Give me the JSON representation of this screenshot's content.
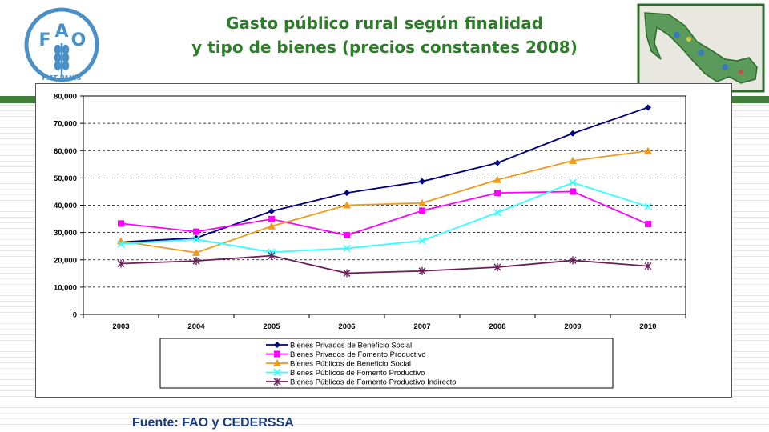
{
  "title_line1": "Gasto público rural según finalidad",
  "title_line2": "y tipo de bienes (precios constantes 2008)",
  "source": "Fuente: FAO y CEDERSSA",
  "logo": {
    "letters": [
      "F",
      "A",
      "O"
    ],
    "motto": "FIAT PANIS"
  },
  "colors": {
    "title": "#2e7d2a",
    "band": "#3f7f3a",
    "logo": "#4a90c8",
    "source": "#1a3a80"
  },
  "chart_data": {
    "type": "line",
    "categories": [
      "2003",
      "2004",
      "2005",
      "2006",
      "2007",
      "2008",
      "2009",
      "2010"
    ],
    "ylim": [
      0,
      80000
    ],
    "yticks": [
      0,
      10000,
      20000,
      30000,
      40000,
      50000,
      60000,
      70000,
      80000
    ],
    "ytick_labels": [
      "0",
      "10,000",
      "20,000",
      "30,000",
      "40,000",
      "50,000",
      "60,000",
      "70,000",
      "80,000"
    ],
    "grid": "horizontal dashed",
    "legend_position": "bottom",
    "series": [
      {
        "name": "Bienes Privados de Beneficio Social",
        "color": "#000080",
        "marker": "diamond",
        "values": [
          26500,
          28000,
          37800,
          44500,
          48700,
          55500,
          66300,
          75800
        ]
      },
      {
        "name": "Bienes Privados de Fomento Productivo",
        "color": "#ff00ff",
        "marker": "square",
        "values": [
          33300,
          30300,
          34900,
          29000,
          38000,
          44500,
          45000,
          33100
        ]
      },
      {
        "name": "Bienes Públicos de Beneficio Social",
        "color": "#f09a1a",
        "marker": "triangle",
        "values": [
          26800,
          22600,
          32300,
          40000,
          40800,
          49300,
          56300,
          59900
        ]
      },
      {
        "name": "Bienes Públicos de Fomento Productivo",
        "color": "#33ffff",
        "marker": "x",
        "values": [
          25800,
          27500,
          22800,
          24200,
          27000,
          37300,
          48300,
          39500
        ]
      },
      {
        "name": "Bienes Públicos de Fomento Productivo Indirecto",
        "color": "#6b1e5a",
        "marker": "star",
        "values": [
          18600,
          19600,
          21500,
          15100,
          15900,
          17300,
          19800,
          17700
        ]
      }
    ]
  }
}
